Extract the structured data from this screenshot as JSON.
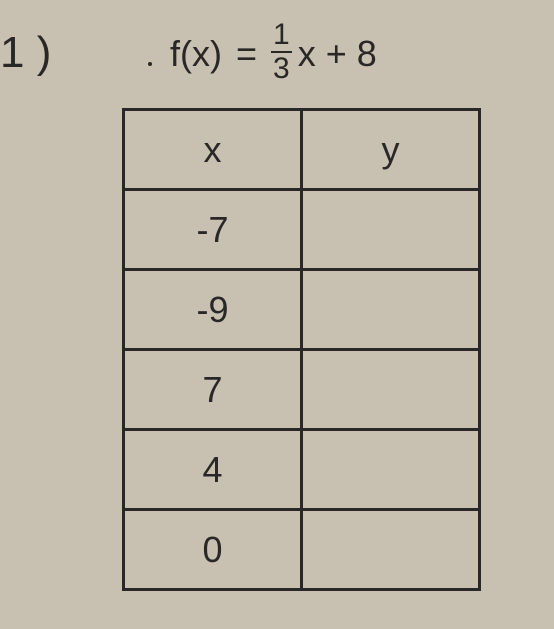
{
  "problem_number": "1 )",
  "equation": {
    "lhs": "f(x)",
    "eq": "=",
    "fraction_num": "1",
    "fraction_den": "3",
    "tail": "x + 8"
  },
  "table": {
    "columns": [
      "x",
      "y"
    ],
    "rows": [
      {
        "x": "-7",
        "y": ""
      },
      {
        "x": "-9",
        "y": ""
      },
      {
        "x": "7",
        "y": ""
      },
      {
        "x": "4",
        "y": ""
      },
      {
        "x": "0",
        "y": ""
      }
    ]
  },
  "colors": {
    "background": "#c8c0b0",
    "text": "#2a2826",
    "border": "#2a2826"
  }
}
